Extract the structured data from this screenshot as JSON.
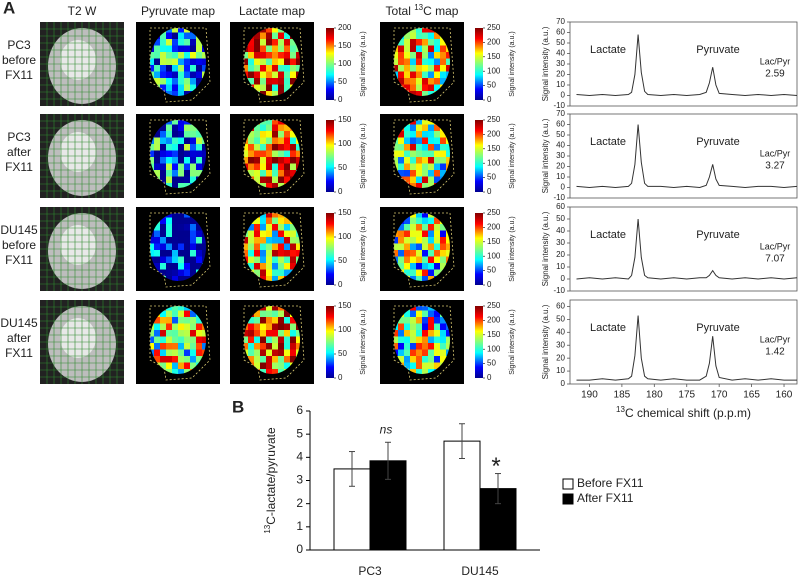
{
  "panel_labels": [
    "A",
    "B"
  ],
  "column_headers": [
    "T2 W",
    "Pyruvate map",
    "Lactate map"
  ],
  "total_header": {
    "pre": "Total ",
    "sup": "13",
    "post": "C map"
  },
  "colorbar_label": "Signal intensity (a.u.)",
  "rows": [
    {
      "label": [
        "PC3",
        "before",
        "FX11"
      ],
      "colorbars": [
        {
          "ticks": [
            0,
            50,
            100,
            150,
            200
          ]
        },
        {
          "ticks": [
            0,
            50,
            100,
            150,
            200,
            250
          ]
        }
      ]
    },
    {
      "label": [
        "PC3",
        "after",
        "FX11"
      ],
      "colorbars": [
        {
          "ticks": [
            0,
            50,
            100,
            150
          ]
        },
        {
          "ticks": [
            0,
            50,
            100,
            150,
            200,
            250
          ]
        }
      ]
    },
    {
      "label": [
        "DU145",
        "before",
        "FX11"
      ],
      "colorbars": [
        {
          "ticks": [
            0,
            50,
            100,
            150
          ]
        },
        {
          "ticks": [
            0,
            50,
            100,
            150,
            200,
            250
          ]
        }
      ]
    },
    {
      "label": [
        "DU145",
        "after",
        "FX11"
      ],
      "colorbars": [
        {
          "ticks": [
            0,
            50,
            100,
            150
          ]
        },
        {
          "ticks": [
            0,
            50,
            100,
            150,
            200,
            250
          ]
        }
      ]
    }
  ],
  "chart_data": [
    {
      "type": "line",
      "y_label": "Signal intensity (a.u.)",
      "color": "#333333",
      "x": [
        192,
        190,
        188,
        186,
        184,
        183.5,
        183,
        182.5,
        182,
        181.5,
        181,
        179,
        177,
        175,
        173,
        172,
        171.5,
        171,
        170.5,
        170,
        168,
        166,
        164,
        162,
        160,
        158
      ],
      "values": [
        1,
        0,
        1,
        0,
        1,
        3,
        20,
        58,
        22,
        4,
        1,
        0,
        1,
        0,
        1,
        3,
        12,
        27,
        10,
        2,
        1,
        0,
        1,
        0,
        1,
        0
      ],
      "xlim": [
        193,
        158
      ],
      "ylim": [
        -10,
        70
      ],
      "yticks": [
        -10,
        0,
        10,
        20,
        30,
        40,
        50,
        60,
        70
      ],
      "annotations": [
        "Lactate",
        "Pyruvate",
        "Lac/Pyr",
        "2.59"
      ]
    },
    {
      "type": "line",
      "y_label": "Signal intensity (a.u.)",
      "color": "#333333",
      "x": [
        192,
        190,
        188,
        186,
        184,
        183.5,
        183,
        182.5,
        182,
        181.5,
        181,
        179,
        177,
        175,
        173,
        172,
        171.5,
        171,
        170.5,
        170,
        168,
        166,
        164,
        162,
        160,
        158
      ],
      "values": [
        1,
        0,
        1,
        0,
        1,
        4,
        22,
        60,
        24,
        4,
        1,
        1,
        0,
        1,
        0,
        2,
        10,
        22,
        8,
        2,
        1,
        0,
        1,
        1,
        0,
        1
      ],
      "xlim": [
        193,
        158
      ],
      "ylim": [
        -10,
        70
      ],
      "yticks": [
        -10,
        0,
        10,
        20,
        30,
        40,
        50,
        60,
        70
      ],
      "annotations": [
        "Lactate",
        "Pyruvate",
        "Lac/Pyr",
        "3.27"
      ]
    },
    {
      "type": "line",
      "y_label": "Signal intensity (a.u.)",
      "color": "#333333",
      "x": [
        192,
        190,
        188,
        186,
        184,
        183.5,
        183,
        182.5,
        182,
        181.5,
        181,
        179,
        177,
        175,
        173,
        172,
        171.5,
        171,
        170.5,
        170,
        168,
        166,
        164,
        162,
        160,
        158
      ],
      "values": [
        0,
        1,
        0,
        1,
        0,
        3,
        18,
        50,
        18,
        3,
        1,
        0,
        1,
        0,
        1,
        1,
        3,
        7,
        3,
        1,
        0,
        1,
        0,
        1,
        0,
        1
      ],
      "xlim": [
        193,
        158
      ],
      "ylim": [
        -10,
        60
      ],
      "yticks": [
        -10,
        0,
        10,
        20,
        30,
        40,
        50,
        60
      ],
      "annotations": [
        "Lactate",
        "Pyruvate",
        "Lac/Pyr",
        "7.07"
      ]
    },
    {
      "type": "line",
      "y_label": "Signal intensity (a.u.)",
      "color": "#333333",
      "x": [
        192,
        190,
        188,
        186,
        184,
        183.5,
        183,
        182.5,
        182,
        181.5,
        181,
        179,
        177,
        175,
        173,
        172,
        171.5,
        171,
        170.5,
        170,
        168,
        166,
        164,
        162,
        160,
        158
      ],
      "values": [
        3,
        3,
        4,
        3,
        4,
        6,
        22,
        53,
        20,
        6,
        4,
        3,
        4,
        3,
        3,
        6,
        16,
        37,
        14,
        5,
        3,
        4,
        3,
        4,
        3,
        3
      ],
      "xlim": [
        193,
        158
      ],
      "ylim": [
        0,
        65
      ],
      "yticks": [
        0,
        10,
        20,
        30,
        40,
        50,
        60
      ],
      "xticks": [
        190,
        185,
        180,
        175,
        170,
        165,
        160
      ],
      "x_label": {
        "sup": "13",
        "text": "C chemical shift (p.p.m)"
      },
      "annotations": [
        "Lactate",
        "Pyruvate",
        "Lac/Pyr",
        "1.42"
      ]
    },
    {
      "type": "bar",
      "y_label": {
        "sup": "13",
        "text": "C-lactate/pyruvate"
      },
      "categories": [
        "PC3",
        "DU145"
      ],
      "series": [
        {
          "name": "Before FX11",
          "color": "#ffffff",
          "values": [
            3.5,
            4.7
          ],
          "errors": [
            0.75,
            0.75
          ]
        },
        {
          "name": "After FX11",
          "color": "#000000",
          "values": [
            3.85,
            2.65
          ],
          "errors": [
            0.8,
            0.65
          ]
        }
      ],
      "ylim": [
        0,
        6
      ],
      "yticks": [
        0,
        1,
        2,
        3,
        4,
        5,
        6
      ],
      "annotations": [
        "ns",
        "*"
      ]
    }
  ]
}
